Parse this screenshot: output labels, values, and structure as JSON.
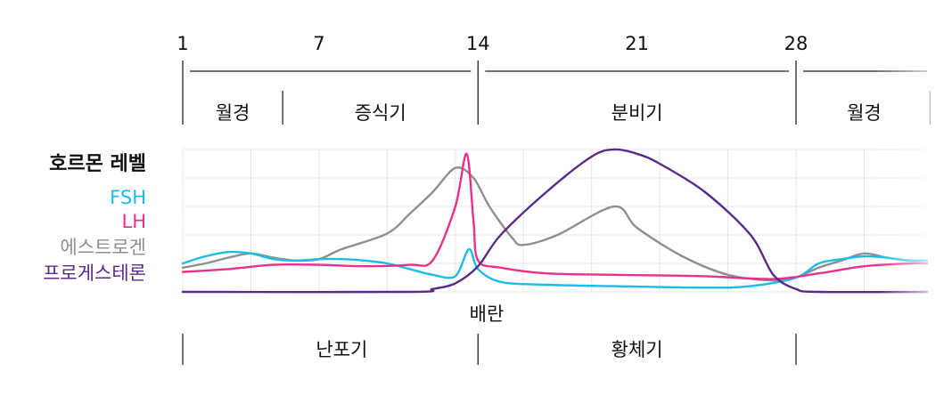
{
  "title": "호르몬 레벨",
  "day_ticks": [
    {
      "label": "1",
      "day": 1
    },
    {
      "label": "7",
      "day": 7
    },
    {
      "label": "14",
      "day": 14
    },
    {
      "label": "21",
      "day": 21
    },
    {
      "label": "28",
      "day": 28
    }
  ],
  "uterine_phases": [
    {
      "label": "월경",
      "start_day": 1,
      "end_day": 5
    },
    {
      "label": "증식기",
      "start_day": 5,
      "end_day": 14
    },
    {
      "label": "분비기",
      "start_day": 14,
      "end_day": 28
    },
    {
      "label": "월경",
      "start_day": 28,
      "end_day": 33
    }
  ],
  "ovulation_label": "배란",
  "ovarian_phases": [
    {
      "label": "난포기",
      "start_day": 1,
      "end_day": 14
    },
    {
      "label": "황체기",
      "start_day": 14,
      "end_day": 28
    }
  ],
  "chart_data": {
    "type": "line",
    "title": "호르몬 레벨",
    "xlabel": "",
    "ylabel": "",
    "xlim": [
      1,
      34
    ],
    "ylim": [
      0,
      100
    ],
    "series": [
      {
        "name": "FSH",
        "color": "#1bbde8",
        "points": [
          [
            1,
            20
          ],
          [
            2,
            25
          ],
          [
            3,
            28
          ],
          [
            4,
            27
          ],
          [
            5,
            23
          ],
          [
            6,
            22
          ],
          [
            7,
            23
          ],
          [
            8,
            23
          ],
          [
            9,
            22
          ],
          [
            10,
            20
          ],
          [
            11,
            16
          ],
          [
            12,
            12
          ],
          [
            13,
            11
          ],
          [
            13.6,
            30
          ],
          [
            14,
            16
          ],
          [
            15,
            7
          ],
          [
            17,
            5
          ],
          [
            20,
            4
          ],
          [
            24,
            3
          ],
          [
            26,
            4
          ],
          [
            28,
            10
          ],
          [
            29,
            20
          ],
          [
            30,
            23
          ],
          [
            31,
            25
          ],
          [
            32,
            24
          ],
          [
            33,
            22
          ],
          [
            34,
            22
          ]
        ]
      },
      {
        "name": "LH",
        "color": "#e8318c",
        "points": [
          [
            1,
            14
          ],
          [
            3,
            16
          ],
          [
            5,
            19
          ],
          [
            7,
            19
          ],
          [
            9,
            18
          ],
          [
            11,
            19
          ],
          [
            12,
            22
          ],
          [
            13,
            60
          ],
          [
            13.5,
            97
          ],
          [
            13.8,
            50
          ],
          [
            14,
            22
          ],
          [
            15,
            17
          ],
          [
            17,
            13
          ],
          [
            20,
            12
          ],
          [
            24,
            11
          ],
          [
            27,
            9
          ],
          [
            29,
            13
          ],
          [
            31,
            18
          ],
          [
            33,
            20
          ],
          [
            34,
            20
          ]
        ]
      },
      {
        "name": "에스트로겐",
        "color": "#8f8f8f",
        "points": [
          [
            1,
            17
          ],
          [
            2,
            20
          ],
          [
            3,
            24
          ],
          [
            4,
            27
          ],
          [
            5,
            24
          ],
          [
            6,
            22
          ],
          [
            7,
            23
          ],
          [
            8,
            30
          ],
          [
            10,
            41
          ],
          [
            11,
            55
          ],
          [
            12,
            70
          ],
          [
            13,
            87
          ],
          [
            13.8,
            80
          ],
          [
            14.5,
            60
          ],
          [
            15.5,
            38
          ],
          [
            16,
            33
          ],
          [
            17.5,
            40
          ],
          [
            20,
            60
          ],
          [
            21,
            45
          ],
          [
            23,
            25
          ],
          [
            25,
            12
          ],
          [
            27,
            8
          ],
          [
            28,
            10
          ],
          [
            29,
            17
          ],
          [
            30,
            22
          ],
          [
            31,
            27
          ],
          [
            32,
            24
          ],
          [
            33,
            22
          ],
          [
            34,
            22
          ]
        ]
      },
      {
        "name": "프로게스테론",
        "color": "#5b2a86",
        "points": [
          [
            1,
            0
          ],
          [
            11,
            0
          ],
          [
            12,
            2
          ],
          [
            13,
            6
          ],
          [
            14,
            18
          ],
          [
            15,
            40
          ],
          [
            17,
            70
          ],
          [
            19,
            95
          ],
          [
            20,
            100
          ],
          [
            21,
            97
          ],
          [
            22,
            90
          ],
          [
            24,
            70
          ],
          [
            26,
            40
          ],
          [
            27,
            12
          ],
          [
            28,
            2
          ],
          [
            29,
            0
          ],
          [
            34,
            0
          ]
        ]
      }
    ]
  }
}
